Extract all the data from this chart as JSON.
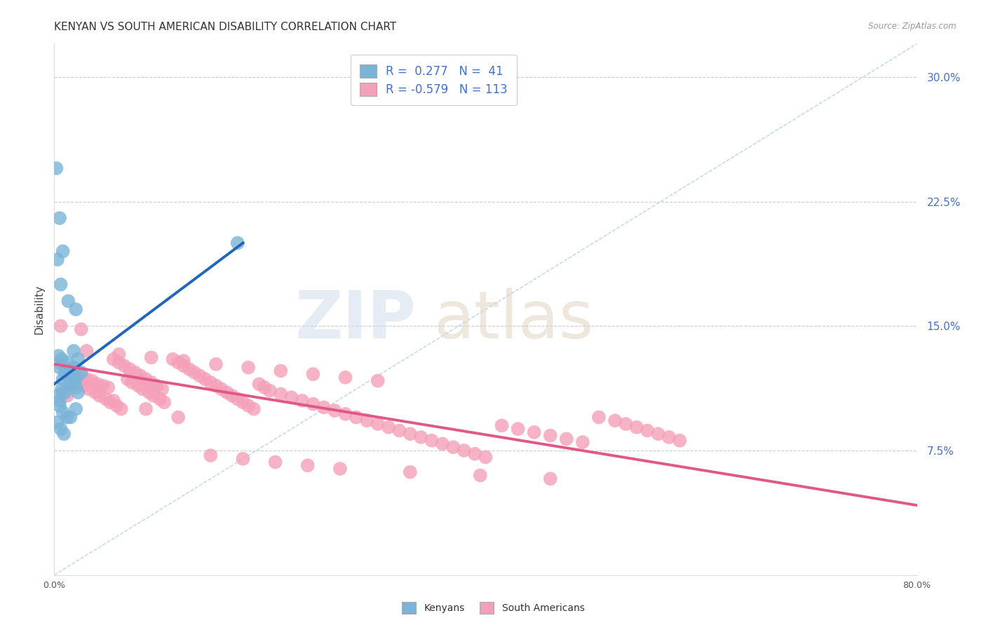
{
  "title": "KENYAN VS SOUTH AMERICAN DISABILITY CORRELATION CHART",
  "source": "Source: ZipAtlas.com",
  "ylabel": "Disability",
  "xlim": [
    0.0,
    0.8
  ],
  "ylim": [
    0.0,
    0.32
  ],
  "y_ticks_right": [
    0.075,
    0.15,
    0.225,
    0.3
  ],
  "y_tick_labels_right": [
    "7.5%",
    "15.0%",
    "22.5%",
    "30.0%"
  ],
  "kenyan_color": "#7ab4d8",
  "south_american_color": "#f4a0b8",
  "kenyan_line_color": "#2266bb",
  "south_american_line_color": "#e05888",
  "background_color": "#ffffff",
  "grid_color": "#cccccc",
  "title_fontsize": 11,
  "axis_label_fontsize": 10,
  "tick_fontsize": 9,
  "legend_fontsize": 12,
  "kenyan_points_x": [
    0.005,
    0.008,
    0.01,
    0.012,
    0.015,
    0.018,
    0.02,
    0.022,
    0.003,
    0.005,
    0.007,
    0.01,
    0.014,
    0.016,
    0.018,
    0.02,
    0.025,
    0.005,
    0.008,
    0.012,
    0.003,
    0.006,
    0.009,
    0.015,
    0.02,
    0.004,
    0.007,
    0.012,
    0.018,
    0.022,
    0.002,
    0.005,
    0.008,
    0.003,
    0.006,
    0.013,
    0.02,
    0.17
  ],
  "kenyan_points_y": [
    0.125,
    0.118,
    0.122,
    0.12,
    0.115,
    0.118,
    0.113,
    0.11,
    0.108,
    0.105,
    0.112,
    0.11,
    0.12,
    0.115,
    0.125,
    0.118,
    0.122,
    0.102,
    0.098,
    0.095,
    0.092,
    0.088,
    0.085,
    0.095,
    0.1,
    0.132,
    0.13,
    0.128,
    0.135,
    0.13,
    0.245,
    0.215,
    0.195,
    0.19,
    0.175,
    0.165,
    0.16,
    0.2
  ],
  "sa_points_x": [
    0.005,
    0.01,
    0.015,
    0.02,
    0.025,
    0.03,
    0.035,
    0.04,
    0.045,
    0.05,
    0.055,
    0.06,
    0.065,
    0.07,
    0.075,
    0.08,
    0.085,
    0.09,
    0.095,
    0.1,
    0.008,
    0.012,
    0.018,
    0.022,
    0.028,
    0.032,
    0.038,
    0.042,
    0.048,
    0.052,
    0.058,
    0.062,
    0.068,
    0.072,
    0.078,
    0.082,
    0.088,
    0.092,
    0.098,
    0.102,
    0.11,
    0.115,
    0.12,
    0.125,
    0.13,
    0.135,
    0.14,
    0.145,
    0.15,
    0.155,
    0.16,
    0.165,
    0.17,
    0.175,
    0.18,
    0.185,
    0.19,
    0.195,
    0.2,
    0.21,
    0.22,
    0.23,
    0.24,
    0.25,
    0.26,
    0.27,
    0.28,
    0.29,
    0.3,
    0.31,
    0.32,
    0.33,
    0.34,
    0.35,
    0.36,
    0.37,
    0.38,
    0.39,
    0.4,
    0.415,
    0.43,
    0.445,
    0.46,
    0.475,
    0.49,
    0.505,
    0.52,
    0.53,
    0.54,
    0.55,
    0.56,
    0.57,
    0.58,
    0.03,
    0.06,
    0.09,
    0.12,
    0.15,
    0.18,
    0.21,
    0.24,
    0.27,
    0.3,
    0.006,
    0.025,
    0.055,
    0.085,
    0.115,
    0.145,
    0.175,
    0.205,
    0.235,
    0.265,
    0.33,
    0.395,
    0.46
  ],
  "sa_points_y": [
    0.128,
    0.125,
    0.124,
    0.122,
    0.12,
    0.118,
    0.117,
    0.115,
    0.114,
    0.113,
    0.13,
    0.128,
    0.126,
    0.124,
    0.122,
    0.12,
    0.118,
    0.116,
    0.114,
    0.112,
    0.11,
    0.108,
    0.118,
    0.116,
    0.114,
    0.112,
    0.11,
    0.108,
    0.106,
    0.104,
    0.102,
    0.1,
    0.118,
    0.116,
    0.114,
    0.112,
    0.11,
    0.108,
    0.106,
    0.104,
    0.13,
    0.128,
    0.126,
    0.124,
    0.122,
    0.12,
    0.118,
    0.116,
    0.114,
    0.112,
    0.11,
    0.108,
    0.106,
    0.104,
    0.102,
    0.1,
    0.115,
    0.113,
    0.111,
    0.109,
    0.107,
    0.105,
    0.103,
    0.101,
    0.099,
    0.097,
    0.095,
    0.093,
    0.091,
    0.089,
    0.087,
    0.085,
    0.083,
    0.081,
    0.079,
    0.077,
    0.075,
    0.073,
    0.071,
    0.09,
    0.088,
    0.086,
    0.084,
    0.082,
    0.08,
    0.095,
    0.093,
    0.091,
    0.089,
    0.087,
    0.085,
    0.083,
    0.081,
    0.135,
    0.133,
    0.131,
    0.129,
    0.127,
    0.125,
    0.123,
    0.121,
    0.119,
    0.117,
    0.15,
    0.148,
    0.105,
    0.1,
    0.095,
    0.072,
    0.07,
    0.068,
    0.066,
    0.064,
    0.062,
    0.06,
    0.058
  ],
  "kenyan_line_x": [
    0.0,
    0.175
  ],
  "kenyan_line_y": [
    0.115,
    0.2
  ],
  "sa_line_x": [
    0.0,
    0.8
  ],
  "sa_line_y": [
    0.127,
    0.042
  ],
  "diag_line_x": [
    0.0,
    0.8
  ],
  "diag_line_y": [
    0.0,
    0.32
  ]
}
